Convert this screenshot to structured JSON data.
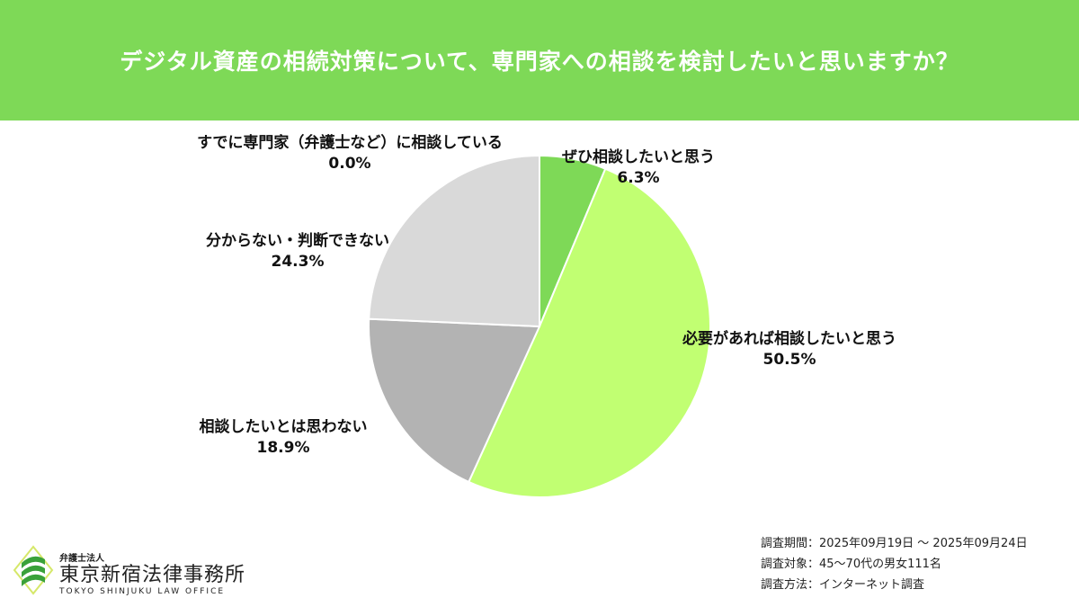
{
  "chart_data": {
    "type": "pie",
    "title": "デジタル資産の相続対策について、専門家への相談を検討したいと思いますか？",
    "start": "top",
    "direction": "clockwise",
    "slices": [
      {
        "label": "ぜひ相談したいと思う",
        "value": 6.3,
        "value_label": "6.3%",
        "color": "#7ed957"
      },
      {
        "label": "必要があれば相談したいと思う",
        "value": 50.5,
        "value_label": "50.5%",
        "color": "#c1ff72"
      },
      {
        "label": "相談したいとは思わない",
        "value": 18.9,
        "value_label": "18.9%",
        "color": "#b3b3b3"
      },
      {
        "label": "分からない・判断できない",
        "value": 24.3,
        "value_label": "24.3%",
        "color": "#d9d9d9"
      },
      {
        "label": "すでに専門家（弁護士など）に相談している",
        "value": 0.0,
        "value_label": "0.0%",
        "color": "#a6a6a6"
      }
    ]
  },
  "colors": {
    "header": "#7ed957"
  },
  "survey": {
    "period": "調査期間：2025年09月19日 〜 2025年09月24日",
    "target": "調査対象：45〜70代の男女111名",
    "method": "調査方法：インターネット調査"
  },
  "logo": {
    "small": "弁護士法人",
    "name": "東京新宿法律事務所",
    "en": "TOKYO SHINJUKU LAW OFFICE"
  }
}
